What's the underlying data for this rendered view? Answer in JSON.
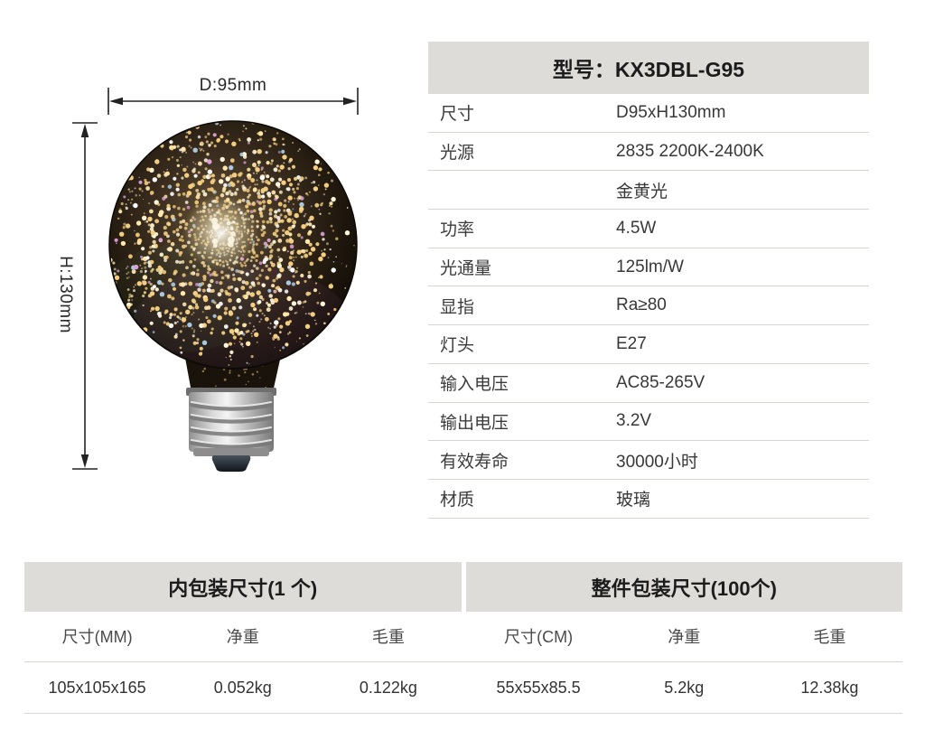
{
  "product": {
    "model_header": "型号：KX3DBL-G95",
    "specs": [
      {
        "label": "尺寸",
        "value": "D95xH130mm"
      },
      {
        "label": "光源",
        "value": "2835 2200K-2400K"
      },
      {
        "label": "",
        "value": "金黄光"
      },
      {
        "label": "功率",
        "value": "4.5W"
      },
      {
        "label": "光通量",
        "value": "125lm/W"
      },
      {
        "label": "显指",
        "value": "Ra≥80"
      },
      {
        "label": "灯头",
        "value": "E27"
      },
      {
        "label": "输入电压",
        "value": "AC85-265V"
      },
      {
        "label": "输出电压",
        "value": "3.2V"
      },
      {
        "label": "有效寿命",
        "value": "30000小时"
      },
      {
        "label": "材质",
        "value": "玻璃"
      }
    ]
  },
  "diagram": {
    "diameter_label": "D:95mm",
    "height_label": "H:130mm"
  },
  "packaging": {
    "inner": {
      "title": "内包装尺寸(1 个)",
      "headers": [
        "尺寸(MM)",
        "净重",
        "毛重"
      ],
      "values": [
        "105x105x165",
        "0.052kg",
        "0.122kg"
      ]
    },
    "carton": {
      "title": "整件包装尺寸(100个)",
      "headers": [
        "尺寸(CM)",
        "净重",
        "毛重"
      ],
      "values": [
        "55x55x85.5",
        "5.2kg",
        "12.38kg"
      ]
    }
  },
  "colors": {
    "page_bg": "#ffffff",
    "table_header_bg": "#dedcd8",
    "divider": "#d6d4d0",
    "text_primary": "#1c1c1c",
    "text_secondary": "#3b3b3b",
    "bulb_gold": "#f3cd80"
  }
}
